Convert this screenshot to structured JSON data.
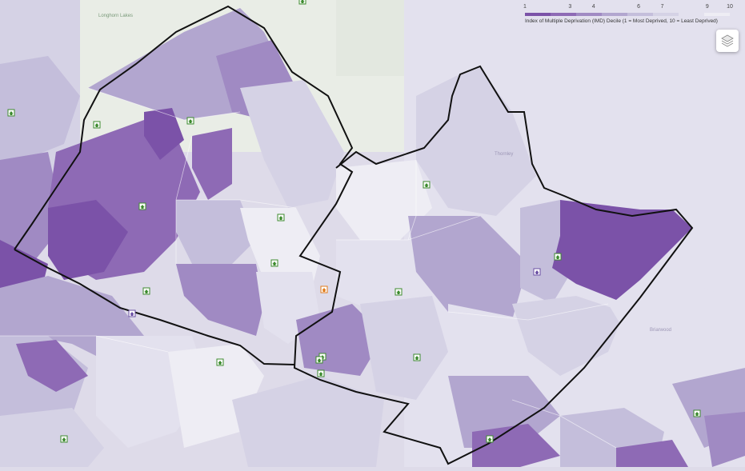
{
  "legend": {
    "title": "Index of Multiple Deprivation (IMD) Decile (1 = Most Deprived, 10 = Least Deprived)",
    "ticks": [
      "1",
      "3",
      "4",
      "6",
      "7",
      "9",
      "10"
    ],
    "colors": [
      "#7b52a8",
      "#8e6ab5",
      "#a08ac3",
      "#b2a6cf",
      "#c4bedb",
      "#d5d2e5",
      "#e3e1ee",
      "#eeedf4"
    ]
  },
  "basemap": {
    "lake_label": "Longhorn Lakes",
    "faint_labels": [
      "Thornley",
      "Briarwood"
    ]
  },
  "layers_control": {
    "icon": "layers-icon"
  },
  "marker_colors": {
    "school": "#3c8a2e",
    "practice": "#6a4fa3",
    "hospital": "#e07b1a"
  }
}
